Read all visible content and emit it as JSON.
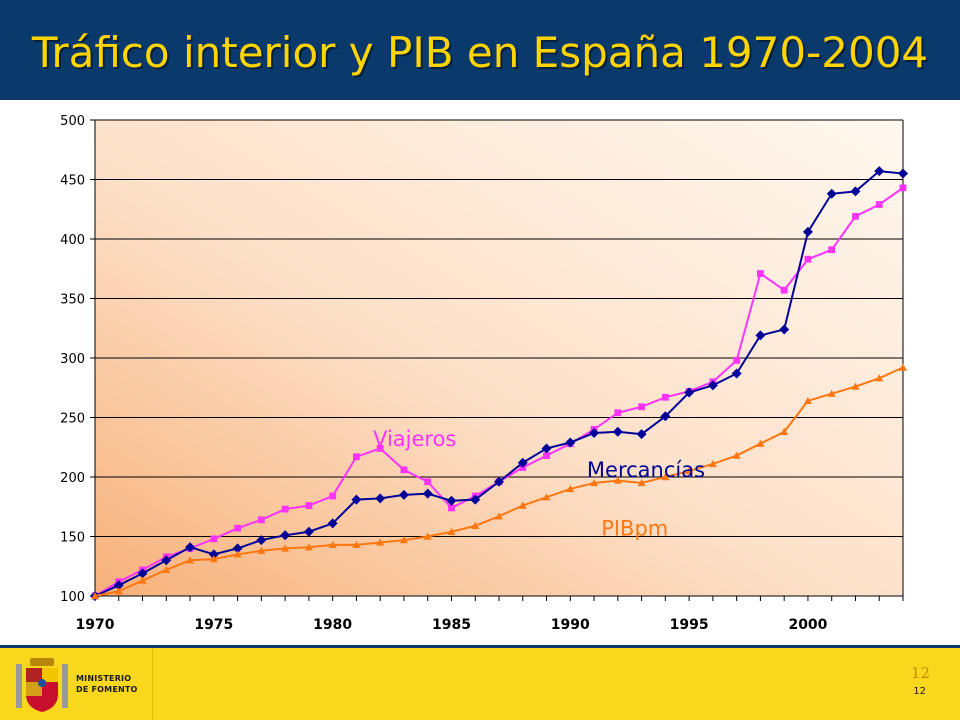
{
  "slide": {
    "title": "Tráfico interior y PIB en España 1970-2004",
    "logo_line1": "MINISTERIO",
    "logo_line2": "DE FOMENTO",
    "page_number": "12",
    "page_number_small": "12"
  },
  "colors": {
    "background": "#0a3a6b",
    "title": "#ffd400",
    "footer": "#f9d71c",
    "viajeros": "#ff33ff",
    "mercancias": "#000099",
    "pibpm": "#ff7711"
  },
  "chart_data": {
    "type": "line",
    "title": "",
    "xlabel": "",
    "ylabel": "",
    "xlim": [
      1970,
      2004
    ],
    "ylim": [
      100,
      500
    ],
    "y_ticks": [
      100,
      150,
      200,
      250,
      300,
      350,
      400,
      450,
      500
    ],
    "x_ticks": [
      1970,
      1975,
      1980,
      1985,
      1990,
      1995,
      2000
    ],
    "grid": "horizontal",
    "legend": "inline labels",
    "x": [
      1970,
      1971,
      1972,
      1973,
      1974,
      1975,
      1976,
      1977,
      1978,
      1979,
      1980,
      1981,
      1982,
      1983,
      1984,
      1985,
      1986,
      1987,
      1988,
      1989,
      1990,
      1991,
      1992,
      1993,
      1994,
      1995,
      1996,
      1997,
      1998,
      1999,
      2000,
      2001,
      2002,
      2003,
      2004
    ],
    "series": [
      {
        "name": "Viajeros",
        "color": "#ff33ff",
        "marker": "square",
        "values": [
          100,
          112,
          122,
          133,
          140,
          148,
          157,
          164,
          173,
          176,
          184,
          217,
          224,
          206,
          196,
          174,
          184,
          196,
          208,
          218,
          228,
          240,
          254,
          259,
          267,
          272,
          280,
          298,
          371,
          357,
          383,
          391,
          419,
          429,
          443
        ]
      },
      {
        "name": "Mercancías",
        "color": "#000099",
        "marker": "diamond",
        "values": [
          100,
          109,
          119,
          130,
          141,
          135,
          140,
          147,
          151,
          154,
          161,
          181,
          182,
          185,
          186,
          180,
          181,
          196,
          212,
          224,
          229,
          237,
          238,
          236,
          251,
          271,
          277,
          287,
          319,
          324,
          406,
          438,
          440,
          457,
          455
        ]
      },
      {
        "name": "PIBpm",
        "color": "#ff7711",
        "marker": "triangle",
        "values": [
          100,
          104,
          113,
          122,
          130,
          131,
          135,
          138,
          140,
          141,
          143,
          143,
          145,
          147,
          150,
          154,
          159,
          167,
          176,
          183,
          190,
          195,
          197,
          195,
          200,
          205,
          211,
          218,
          228,
          238,
          264,
          270,
          276,
          283,
          292
        ]
      }
    ]
  }
}
